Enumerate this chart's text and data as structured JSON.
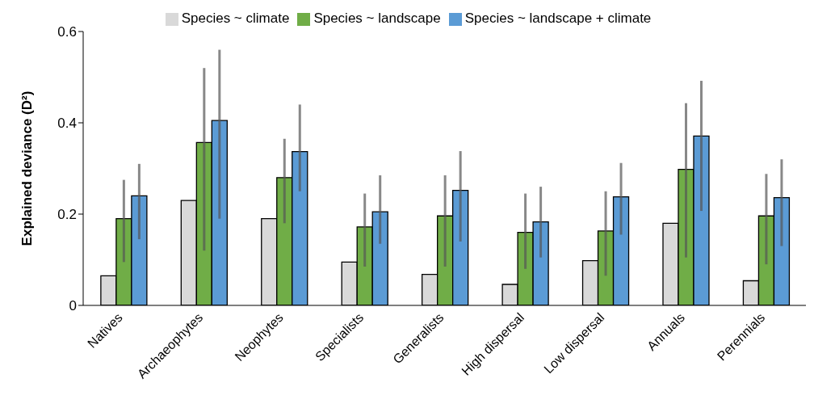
{
  "chart_data": {
    "type": "bar",
    "ylabel": "Explained deviance (D²)",
    "categories": [
      "Natives",
      "Archaeophytes",
      "Neophytes",
      "Specialists",
      "Generalists",
      "High dispersal",
      "Low dispersal",
      "Annuals",
      "Perennials"
    ],
    "series": [
      {
        "name": "Species ~ climate",
        "color": "#d9d9d9",
        "values": [
          0.065,
          0.23,
          0.19,
          0.095,
          0.068,
          0.046,
          0.098,
          0.18,
          0.054
        ]
      },
      {
        "name": "Species ~ landscape",
        "color": "#70ad47",
        "values": [
          0.19,
          0.357,
          0.28,
          0.172,
          0.196,
          0.16,
          0.163,
          0.298,
          0.196
        ],
        "errors": [
          [
            0.095,
            0.275
          ],
          [
            0.12,
            0.52
          ],
          [
            0.18,
            0.365
          ],
          [
            0.085,
            0.245
          ],
          [
            0.085,
            0.285
          ],
          [
            0.08,
            0.245
          ],
          [
            0.065,
            0.25
          ],
          [
            0.105,
            0.443
          ],
          [
            0.09,
            0.288
          ]
        ]
      },
      {
        "name": "Species ~ landscape + climate",
        "color": "#5b9bd5",
        "values": [
          0.24,
          0.405,
          0.337,
          0.205,
          0.252,
          0.183,
          0.238,
          0.371,
          0.236
        ],
        "errors": [
          [
            0.145,
            0.31
          ],
          [
            0.19,
            0.56
          ],
          [
            0.25,
            0.44
          ],
          [
            0.135,
            0.285
          ],
          [
            0.14,
            0.338
          ],
          [
            0.105,
            0.26
          ],
          [
            0.155,
            0.312
          ],
          [
            0.207,
            0.492
          ],
          [
            0.13,
            0.32
          ]
        ]
      }
    ],
    "ylim": [
      0,
      0.6
    ],
    "yticks": [
      0,
      0.2,
      0.4,
      0.6
    ],
    "grid": false,
    "legend": "top"
  }
}
